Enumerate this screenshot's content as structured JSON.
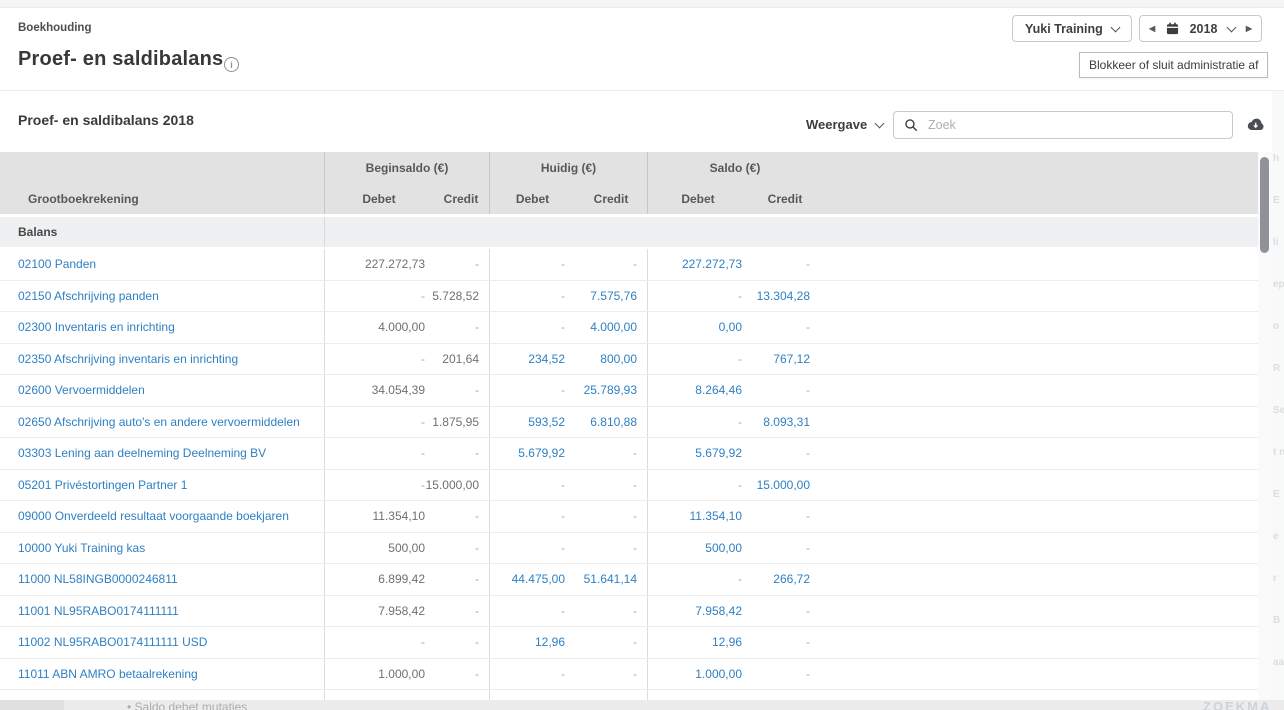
{
  "topbar": {
    "breadcrumb": "Boekhouding",
    "page_title": "Proef- en saldibalans",
    "company_selector": "Yuki Training",
    "year": "2018",
    "block_button": "Blokkeer of sluit administratie af"
  },
  "panel": {
    "title": "Proef- en saldibalans 2018",
    "weergave_label": "Weergave",
    "search_placeholder": "Zoek"
  },
  "table": {
    "group_headers": [
      "Beginsaldo (€)",
      "Huidig (€)",
      "Saldo (€)"
    ],
    "col_account": "Grootboekrekening",
    "col_debet": "Debet",
    "col_credit": "Credit",
    "section": "Balans",
    "rows": [
      {
        "account": "02100 Panden",
        "bd": "227.272,73",
        "bc": "-",
        "hd": "-",
        "hc": "-",
        "sd": "227.272,73",
        "sc": "-"
      },
      {
        "account": "02150 Afschrijving panden",
        "bd": "-",
        "bc": "5.728,52",
        "hd": "-",
        "hc": "7.575,76",
        "sd": "-",
        "sc": "13.304,28"
      },
      {
        "account": "02300 Inventaris en inrichting",
        "bd": "4.000,00",
        "bc": "-",
        "hd": "-",
        "hc": "4.000,00",
        "sd": "0,00",
        "sc": "-"
      },
      {
        "account": "02350 Afschrijving inventaris en inrichting",
        "bd": "-",
        "bc": "201,64",
        "hd": "234,52",
        "hc": "800,00",
        "sd": "-",
        "sc": "767,12"
      },
      {
        "account": "02600 Vervoermiddelen",
        "bd": "34.054,39",
        "bc": "-",
        "hd": "-",
        "hc": "25.789,93",
        "sd": "8.264,46",
        "sc": "-"
      },
      {
        "account": "02650 Afschrijving auto's en andere vervoermiddelen",
        "bd": "-",
        "bc": "1.875,95",
        "hd": "593,52",
        "hc": "6.810,88",
        "sd": "-",
        "sc": "8.093,31"
      },
      {
        "account": "03303 Lening aan deelneming Deelneming BV",
        "bd": "-",
        "bc": "-",
        "hd": "5.679,92",
        "hc": "-",
        "sd": "5.679,92",
        "sc": "-"
      },
      {
        "account": "05201 Privéstortingen Partner 1",
        "bd": "-",
        "bc": "15.000,00",
        "hd": "-",
        "hc": "-",
        "sd": "-",
        "sc": "15.000,00"
      },
      {
        "account": "09000 Onverdeeld resultaat voorgaande boekjaren",
        "bd": "11.354,10",
        "bc": "-",
        "hd": "-",
        "hc": "-",
        "sd": "11.354,10",
        "sc": "-"
      },
      {
        "account": "10000 Yuki Training kas",
        "bd": "500,00",
        "bc": "-",
        "hd": "-",
        "hc": "-",
        "sd": "500,00",
        "sc": "-"
      },
      {
        "account": "11000 NL58INGB0000246811",
        "bd": "6.899,42",
        "bc": "-",
        "hd": "44.475,00",
        "hc": "51.641,14",
        "sd": "-",
        "sc": "266,72"
      },
      {
        "account": "11001 NL95RABO0174111111",
        "bd": "7.958,42",
        "bc": "-",
        "hd": "-",
        "hc": "-",
        "sd": "7.958,42",
        "sc": "-"
      },
      {
        "account": "11002 NL95RABO0174111111 USD",
        "bd": "-",
        "bc": "-",
        "hd": "12,96",
        "hc": "-",
        "sd": "12,96",
        "sc": "-"
      },
      {
        "account": "11011 ABN AMRO betaalrekening",
        "bd": "1.000,00",
        "bc": "-",
        "hd": "-",
        "hc": "-",
        "sd": "1.000,00",
        "sc": "-"
      }
    ],
    "footer_partial": "Saldo debet mutaties",
    "footer_bullet": "•",
    "corner_text": "ZOEKMA"
  },
  "edge_fragments": [
    "h",
    "E",
    "li",
    "ep",
    "o",
    "R",
    "Se",
    "t n",
    "E",
    "e",
    "r",
    "B",
    "aa"
  ],
  "icons": {
    "info": "i",
    "prev_arrow": "◀",
    "next_arrow": "▶"
  },
  "colors": {
    "link_blue": "#2f80c3",
    "value_gray": "#707070",
    "header_bg": "#e2e2e3",
    "section_bg": "#eef0f1"
  }
}
